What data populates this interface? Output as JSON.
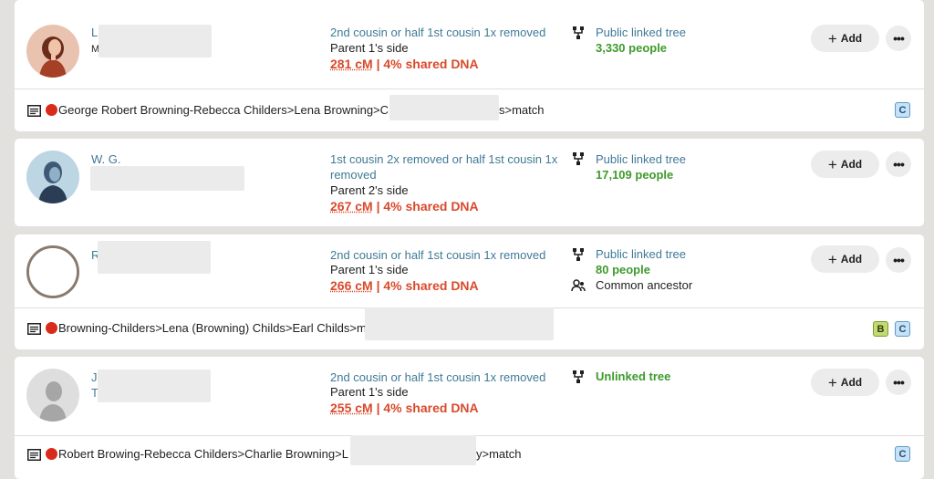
{
  "matches": [
    {
      "name_initial": "L",
      "name_line2_initial": "M",
      "relationship": "2nd cousin or half 1st cousin 1x removed",
      "side": "Parent 1's side",
      "cm": "281 cM",
      "shared": " | 4% shared DNA",
      "tree_label": "Public linked tree",
      "tree_people": "3,330 people",
      "note_pre": "George Robert Browning-Rebecca Childers>Lena Browning>C",
      "note_post": "s>match",
      "badges": [
        "C"
      ]
    },
    {
      "name_initial": "W. G.",
      "relationship": "1st cousin 2x removed or half 1st cousin 1x removed",
      "side": "Parent 2's side",
      "cm": "267 cM",
      "shared": " | 4% shared DNA",
      "tree_label": "Public linked tree",
      "tree_people": "17,109 people"
    },
    {
      "name_initial": "R",
      "relationship": "2nd cousin or half 1st cousin 1x removed",
      "side": "Parent 1's side",
      "cm": "266 cM",
      "shared": " | 4% shared DNA",
      "tree_label": "Public linked tree",
      "tree_people": "80 people",
      "common_ancestor": "Common ancestor",
      "note_pre": "Browning-Childers>Lena (Browning) Childs>Earl Childs>m",
      "badges": [
        "B",
        "C"
      ]
    },
    {
      "name_initial": "J",
      "name_line2_initial": "T",
      "relationship": "2nd cousin or half 1st cousin 1x removed",
      "side": "Parent 1's side",
      "cm": "255 cM",
      "shared": " | 4% shared DNA",
      "tree_label": "Unlinked tree",
      "note_pre": "Robert Browing-Rebecca Childers>Charlie Browning>L",
      "note_post": "y>match",
      "badges": [
        "C"
      ]
    }
  ],
  "add_label": "Add",
  "more_label": "•••",
  "colors": {
    "link_blue": "#3f7a97",
    "dna_red": "#d94a2b",
    "green": "#3e9b2c",
    "page_bg": "#e3e1de"
  },
  "icons": [
    "tree-icon",
    "note-icon",
    "people-icon",
    "plus-icon",
    "more-icon"
  ]
}
